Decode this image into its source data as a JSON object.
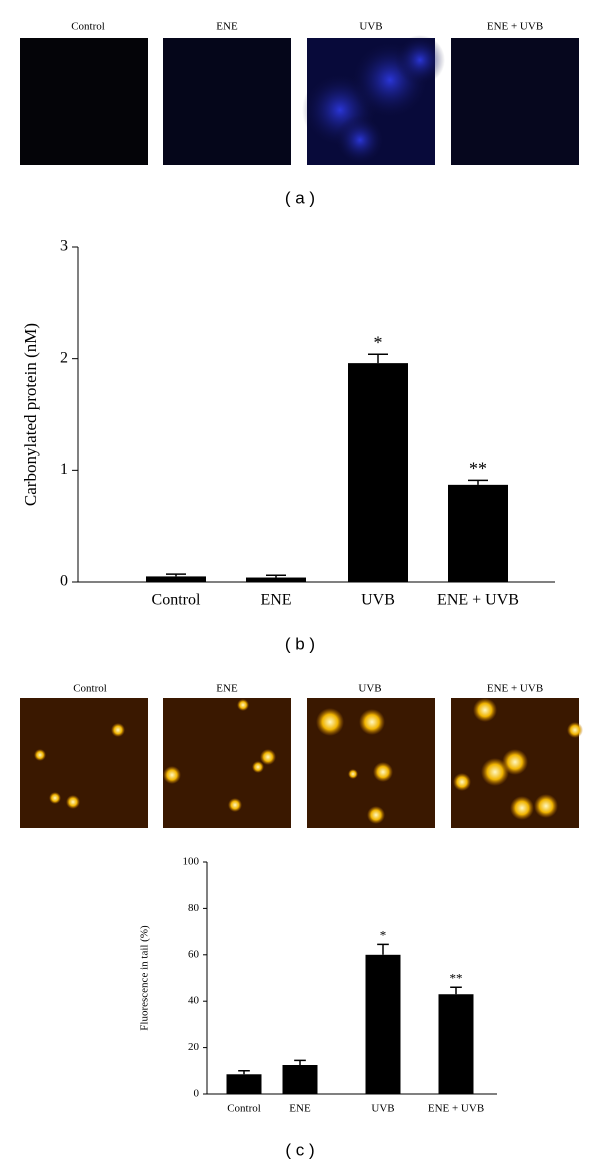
{
  "panel_a": {
    "labels": [
      "Control",
      "ENE",
      "UVB",
      "ENE + UVB"
    ],
    "caption": "( a )"
  },
  "panel_b": {
    "caption": "( b )"
  },
  "panel_c": {
    "labels": [
      "Control",
      "ENE",
      "UVB",
      "ENE + UVB"
    ],
    "caption": "( c )"
  },
  "chart_data": [
    {
      "type": "bar",
      "ylabel": "Carbonylated protein (nM)",
      "categories": [
        "Control",
        "ENE",
        "UVB",
        "ENE + UVB"
      ],
      "values": [
        0.05,
        0.04,
        1.96,
        0.87
      ],
      "errors": [
        0.02,
        0.02,
        0.08,
        0.04
      ],
      "annotations": [
        null,
        null,
        "*",
        "**"
      ],
      "color": "#000000",
      "ylim": [
        0,
        3
      ],
      "yticks": [
        0,
        1,
        2,
        3
      ]
    },
    {
      "type": "bar",
      "ylabel": "Fluorescence in tail (%)",
      "categories": [
        "Control",
        "ENE",
        "UVB",
        "ENE + UVB"
      ],
      "values": [
        8.5,
        12.5,
        60,
        43
      ],
      "errors": [
        1.5,
        2,
        4.5,
        3
      ],
      "annotations": [
        null,
        null,
        "*",
        "**"
      ],
      "color": "#000000",
      "ylim": [
        0,
        100
      ],
      "yticks": [
        0,
        20,
        40,
        60,
        80,
        100
      ]
    }
  ]
}
